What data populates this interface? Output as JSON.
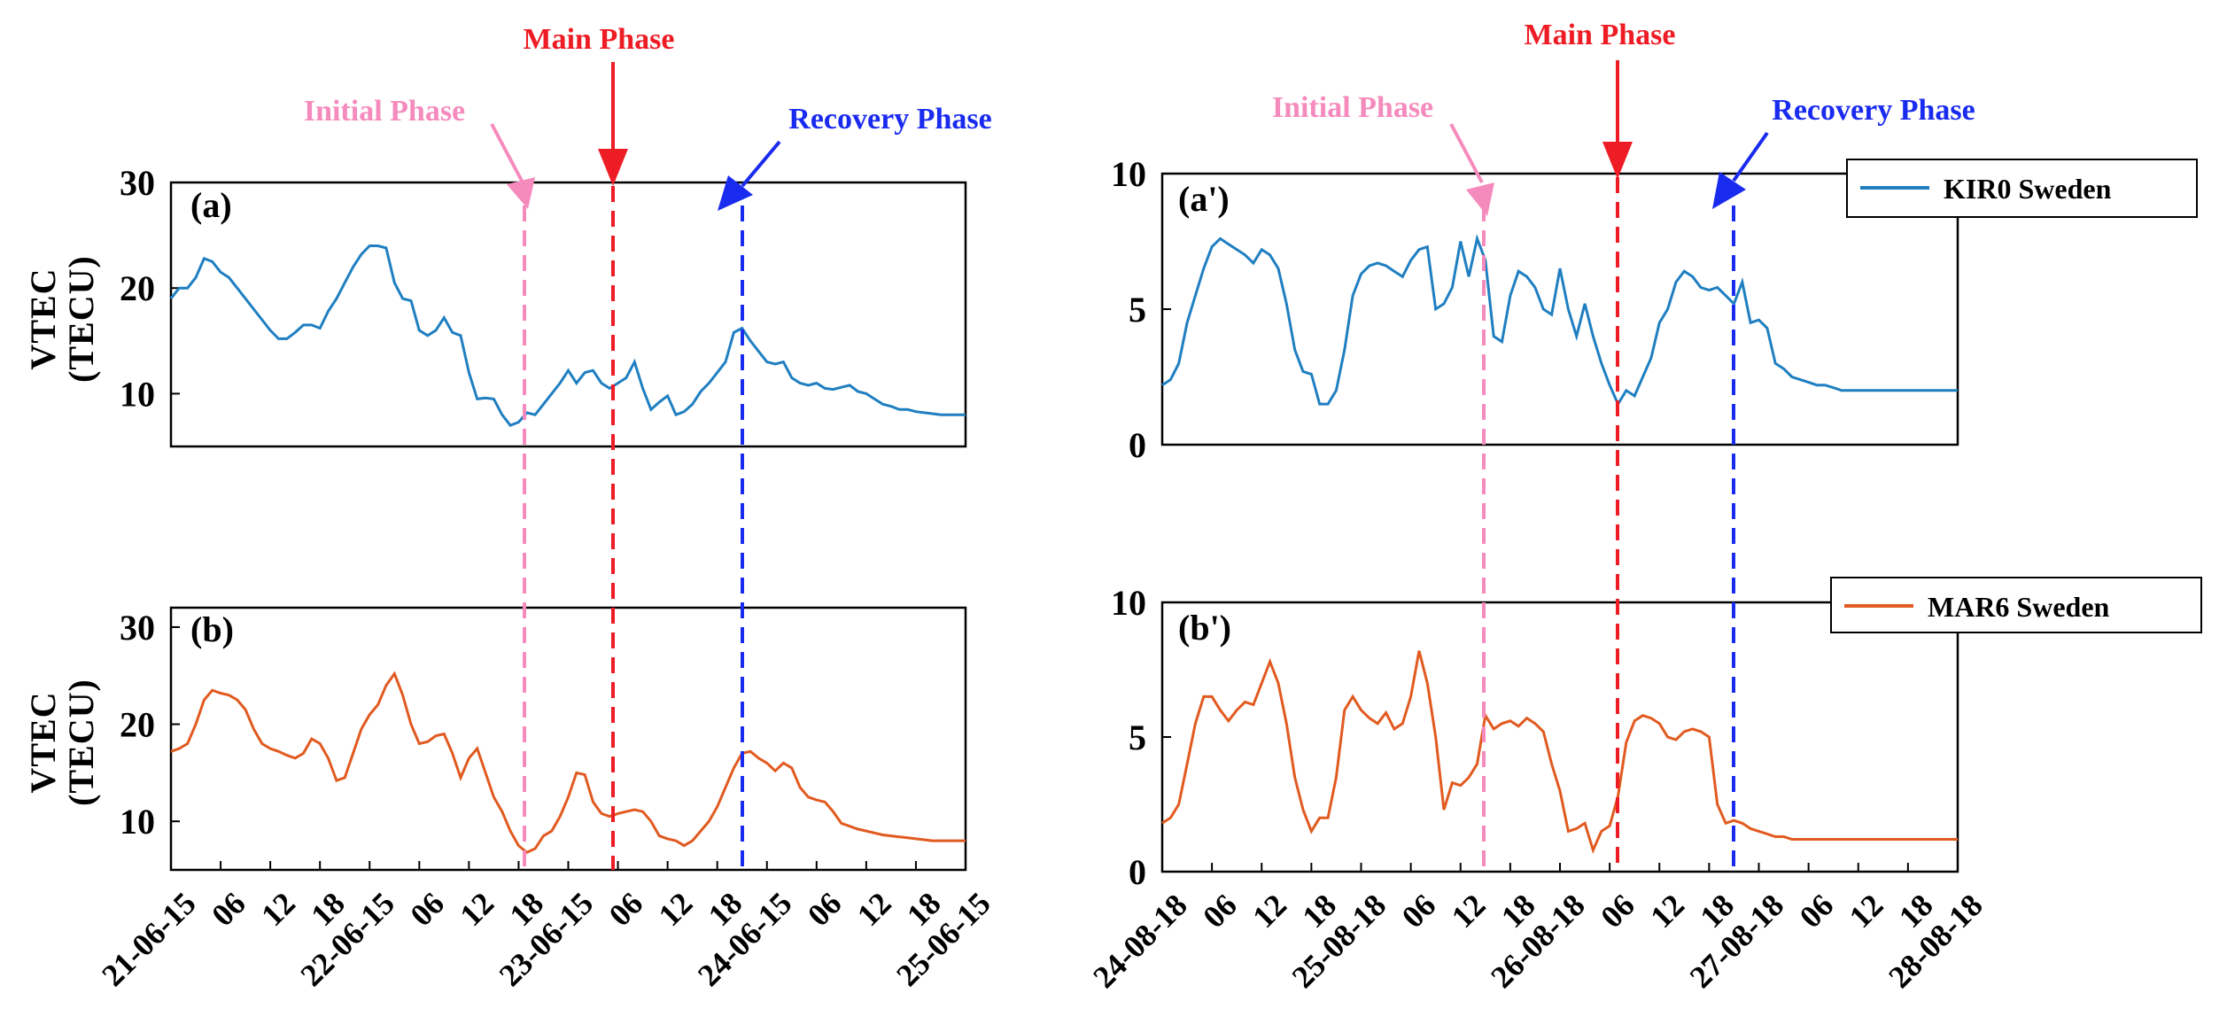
{
  "chart_data": [
    {
      "type": "line",
      "panel_label": "(a)",
      "ylabel": [
        "VTEC",
        "(TECU)"
      ],
      "ylim": [
        5,
        30
      ],
      "yticks": [
        10,
        20,
        30
      ],
      "xlim": [
        0,
        96
      ],
      "x_tick_labels": [
        "21-06-15",
        "06",
        "12",
        "18",
        "22-06-15",
        "06",
        "12",
        "18",
        "23-06-15",
        "06",
        "12",
        "18",
        "24-06-15",
        "06",
        "12",
        "18",
        "25-06-15"
      ],
      "series": [
        {
          "name": "KIR0 Sweden",
          "color": "#1f7fc1",
          "x": [
            0,
            1,
            2,
            3,
            4,
            5,
            6,
            7,
            8,
            9,
            10,
            11,
            12,
            13,
            14,
            15,
            16,
            17,
            18,
            19,
            20,
            21,
            22,
            23,
            24,
            25,
            26,
            27,
            28,
            29,
            30,
            31,
            32,
            33,
            34,
            35,
            36,
            37,
            38,
            39,
            40,
            41,
            42,
            43,
            44,
            45,
            46,
            47,
            48,
            49,
            50,
            51,
            52,
            53,
            54,
            55,
            56,
            57,
            58,
            59,
            60,
            61,
            62,
            63,
            64,
            65,
            66,
            67,
            68,
            69,
            70,
            71,
            72,
            73,
            74,
            75,
            76,
            77,
            78,
            79,
            80,
            81,
            82,
            83,
            84,
            85,
            86,
            87,
            88,
            89,
            90,
            91,
            92,
            93,
            94,
            95,
            96
          ],
          "values": [
            19,
            20,
            20,
            21,
            22.8,
            22.5,
            21.5,
            21,
            20,
            19,
            18,
            17,
            16,
            15.2,
            15.2,
            15.8,
            16.5,
            16.5,
            16.2,
            17.8,
            19,
            20.5,
            22,
            23.2,
            24,
            24,
            23.8,
            20.5,
            19,
            18.8,
            16,
            15.5,
            16,
            17.2,
            15.8,
            15.5,
            12,
            9.5,
            9.6,
            9.5,
            8,
            7,
            7.3,
            8.2,
            8,
            9,
            10,
            11,
            12.2,
            11,
            12,
            12.2,
            11,
            10.5,
            11,
            11.5,
            13,
            10.5,
            8.5,
            9.2,
            9.8,
            8,
            8.3,
            9,
            10.2,
            11,
            12,
            13,
            15.8,
            16.2,
            15,
            14,
            13,
            12.8,
            13,
            11.5,
            11,
            10.8,
            11,
            10.5,
            10.4,
            10.6,
            10.8,
            10.2,
            10,
            9.5,
            9,
            8.8,
            8.5,
            8.5,
            8.3,
            8.2,
            8.1,
            8,
            8,
            8,
            8
          ]
        }
      ]
    },
    {
      "type": "line",
      "panel_label": "(b)",
      "ylabel": [
        "VTEC",
        "(TECU)"
      ],
      "ylim": [
        5,
        32
      ],
      "yticks": [
        10,
        20,
        30
      ],
      "xlim": [
        0,
        96
      ],
      "x_tick_labels": [
        "21-06-15",
        "06",
        "12",
        "18",
        "22-06-15",
        "06",
        "12",
        "18",
        "23-06-15",
        "06",
        "12",
        "18",
        "24-06-15",
        "06",
        "12",
        "18",
        "25-06-15"
      ],
      "series": [
        {
          "name": "MAR6 Sweden",
          "color": "#e15a20",
          "x": [
            0,
            1,
            2,
            3,
            4,
            5,
            6,
            7,
            8,
            9,
            10,
            11,
            12,
            13,
            14,
            15,
            16,
            17,
            18,
            19,
            20,
            21,
            22,
            23,
            24,
            25,
            26,
            27,
            28,
            29,
            30,
            31,
            32,
            33,
            34,
            35,
            36,
            37,
            38,
            39,
            40,
            41,
            42,
            43,
            44,
            45,
            46,
            47,
            48,
            49,
            50,
            51,
            52,
            53,
            54,
            55,
            56,
            57,
            58,
            59,
            60,
            61,
            62,
            63,
            64,
            65,
            66,
            67,
            68,
            69,
            70,
            71,
            72,
            73,
            74,
            75,
            76,
            77,
            78,
            79,
            80,
            81,
            82,
            83,
            84,
            85,
            86,
            87,
            88,
            89,
            90,
            91,
            92,
            93,
            94,
            95,
            96
          ],
          "values": [
            17.2,
            17.5,
            18,
            20,
            22.5,
            23.5,
            23.2,
            23,
            22.5,
            21.5,
            19.5,
            18,
            17.5,
            17.2,
            16.8,
            16.5,
            17,
            18.5,
            18,
            16.5,
            14.2,
            14.5,
            17,
            19.5,
            21,
            22,
            24,
            25.2,
            23,
            20,
            18,
            18.2,
            18.8,
            19,
            17,
            14.5,
            16.5,
            17.5,
            15,
            12.5,
            11,
            9,
            7.5,
            6.8,
            7.2,
            8.5,
            9,
            10.5,
            12.5,
            15,
            14.8,
            12,
            10.8,
            10.5,
            10.8,
            11,
            11.2,
            11,
            10,
            8.5,
            8.2,
            8,
            7.5,
            8,
            9,
            10,
            11.5,
            13.5,
            15.5,
            17,
            17.2,
            16.5,
            16,
            15.2,
            16,
            15.5,
            13.5,
            12.5,
            12.2,
            12,
            11,
            9.8,
            9.5,
            9.2,
            9,
            8.8,
            8.6,
            8.5,
            8.4,
            8.3,
            8.2,
            8.1,
            8,
            8,
            8,
            8,
            8
          ]
        }
      ]
    },
    {
      "type": "line",
      "panel_label": "(a')",
      "ylim": [
        0,
        10
      ],
      "yticks": [
        0,
        5,
        10
      ],
      "xlim": [
        0,
        96
      ],
      "x_tick_labels": [
        "24-08-18",
        "06",
        "12",
        "18",
        "25-08-18",
        "06",
        "12",
        "18",
        "26-08-18",
        "06",
        "12",
        "18",
        "27-08-18",
        "06",
        "12",
        "18",
        "28-08-18"
      ],
      "series": [
        {
          "name": "KIR0 Sweden",
          "color": "#1f7fc1",
          "x": [
            0,
            1,
            2,
            3,
            4,
            5,
            6,
            7,
            8,
            9,
            10,
            11,
            12,
            13,
            14,
            15,
            16,
            17,
            18,
            19,
            20,
            21,
            22,
            23,
            24,
            25,
            26,
            27,
            28,
            29,
            30,
            31,
            32,
            33,
            34,
            35,
            36,
            37,
            38,
            39,
            40,
            41,
            42,
            43,
            44,
            45,
            46,
            47,
            48,
            49,
            50,
            51,
            52,
            53,
            54,
            55,
            56,
            57,
            58,
            59,
            60,
            61,
            62,
            63,
            64,
            65,
            66,
            67,
            68,
            69,
            70,
            71,
            72,
            73,
            74,
            75,
            76,
            77,
            78,
            79,
            80,
            81,
            82,
            83,
            84,
            85,
            86,
            87,
            88,
            89,
            90,
            91,
            92,
            93,
            94,
            95,
            96
          ],
          "values": [
            2.2,
            2.4,
            3,
            4.5,
            5.5,
            6.5,
            7.3,
            7.6,
            7.4,
            7.2,
            7,
            6.7,
            7.2,
            7,
            6.5,
            5.2,
            3.5,
            2.7,
            2.6,
            1.5,
            1.5,
            2,
            3.5,
            5.5,
            6.3,
            6.6,
            6.7,
            6.6,
            6.4,
            6.2,
            6.8,
            7.2,
            7.3,
            5,
            5.2,
            5.8,
            7.5,
            6.2,
            7.6,
            6.8,
            4,
            3.8,
            5.5,
            6.4,
            6.2,
            5.8,
            5,
            4.8,
            6.5,
            5,
            4,
            5.2,
            4,
            3,
            2.2,
            1.5,
            2,
            1.8,
            2.5,
            3.2,
            4.5,
            5,
            6,
            6.4,
            6.2,
            5.8,
            5.7,
            5.8,
            5.5,
            5.2,
            6,
            4.5,
            4.6,
            4.3,
            3,
            2.8,
            2.5,
            2.4,
            2.3,
            2.2,
            2.2,
            2.1,
            2,
            2,
            2,
            2,
            2,
            2,
            2,
            2,
            2,
            2,
            2,
            2,
            2,
            2,
            2
          ]
        }
      ]
    },
    {
      "type": "line",
      "panel_label": "(b')",
      "ylim": [
        0,
        10
      ],
      "yticks": [
        0,
        5,
        10
      ],
      "xlim": [
        0,
        96
      ],
      "x_tick_labels": [
        "24-08-18",
        "06",
        "12",
        "18",
        "25-08-18",
        "06",
        "12",
        "18",
        "26-08-18",
        "06",
        "12",
        "18",
        "27-08-18",
        "06",
        "12",
        "18",
        "28-08-18"
      ],
      "series": [
        {
          "name": "MAR6 Sweden",
          "color": "#e15a20",
          "x": [
            0,
            1,
            2,
            3,
            4,
            5,
            6,
            7,
            8,
            9,
            10,
            11,
            12,
            13,
            14,
            15,
            16,
            17,
            18,
            19,
            20,
            21,
            22,
            23,
            24,
            25,
            26,
            27,
            28,
            29,
            30,
            31,
            32,
            33,
            34,
            35,
            36,
            37,
            38,
            39,
            40,
            41,
            42,
            43,
            44,
            45,
            46,
            47,
            48,
            49,
            50,
            51,
            52,
            53,
            54,
            55,
            56,
            57,
            58,
            59,
            60,
            61,
            62,
            63,
            64,
            65,
            66,
            67,
            68,
            69,
            70,
            71,
            72,
            73,
            74,
            75,
            76,
            77,
            78,
            79,
            80,
            81,
            82,
            83,
            84,
            85,
            86,
            87,
            88,
            89,
            90,
            91,
            92,
            93,
            94,
            95,
            96
          ],
          "values": [
            1.8,
            2,
            2.5,
            4,
            5.5,
            6.5,
            6.5,
            6,
            5.6,
            6,
            6.3,
            6.2,
            7,
            7.8,
            7,
            5.5,
            3.5,
            2.3,
            1.5,
            2,
            2,
            3.5,
            6,
            6.5,
            6,
            5.7,
            5.5,
            5.9,
            5.3,
            5.5,
            6.5,
            8.2,
            7,
            5,
            2.3,
            3.3,
            3.2,
            3.5,
            4,
            5.8,
            5.3,
            5.5,
            5.6,
            5.4,
            5.7,
            5.5,
            5.2,
            4,
            3,
            1.5,
            1.6,
            1.8,
            0.8,
            1.5,
            1.7,
            2.8,
            4.8,
            5.6,
            5.8,
            5.7,
            5.5,
            5,
            4.9,
            5.2,
            5.3,
            5.2,
            5,
            2.5,
            1.8,
            1.9,
            1.8,
            1.6,
            1.5,
            1.4,
            1.3,
            1.3,
            1.2,
            1.2,
            1.2,
            1.2,
            1.2,
            1.2,
            1.2,
            1.2,
            1.2,
            1.2,
            1.2,
            1.2,
            1.2,
            1.2,
            1.2,
            1.2,
            1.2,
            1.2,
            1.2,
            1.2,
            1.2
          ]
        }
      ]
    }
  ],
  "phases": {
    "initial": {
      "label": "Initial Phase",
      "color": "#f58bbd"
    },
    "main": {
      "label": "Main Phase",
      "color": "#ee1c24"
    },
    "recovery": {
      "label": "Recovery Phase",
      "color": "#1a2bf0"
    }
  },
  "legend": {
    "kir0": {
      "label": "KIR0 Sweden",
      "color": "#1f7fc1"
    },
    "mar6": {
      "label": "MAR6 Sweden",
      "color": "#e15a20"
    }
  }
}
